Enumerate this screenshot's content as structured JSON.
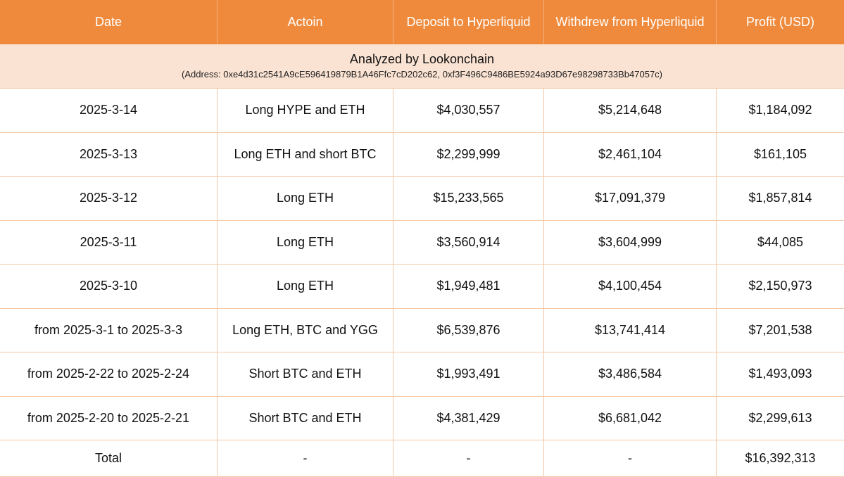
{
  "table": {
    "columns": [
      "Date",
      "Actoin",
      "Deposit to Hyperliquid",
      "Withdrew from Hyperliquid",
      "Profit (USD)"
    ],
    "banner": {
      "title": "Analyzed by Lookonchain",
      "address": "(Address: 0xe4d31c2541A9cE596419879B1A46Ffc7cD202c62, 0xf3F496C9486BE5924a93D67e98298733Bb47057c)"
    },
    "rows": [
      [
        "2025-3-14",
        "Long HYPE and ETH",
        "$4,030,557",
        "$5,214,648",
        "$1,184,092"
      ],
      [
        "2025-3-13",
        "Long ETH and short BTC",
        "$2,299,999",
        "$2,461,104",
        "$161,105"
      ],
      [
        "2025-3-12",
        "Long ETH",
        "$15,233,565",
        "$17,091,379",
        "$1,857,814"
      ],
      [
        "2025-3-11",
        "Long ETH",
        "$3,560,914",
        "$3,604,999",
        "$44,085"
      ],
      [
        "2025-3-10",
        "Long ETH",
        "$1,949,481",
        "$4,100,454",
        "$2,150,973"
      ],
      [
        "from 2025-3-1 to 2025-3-3",
        "Long ETH, BTC and YGG",
        "$6,539,876",
        "$13,741,414",
        "$7,201,538"
      ],
      [
        "from 2025-2-22 to 2025-2-24",
        "Short BTC and ETH",
        "$1,993,491",
        "$3,486,584",
        "$1,493,093"
      ],
      [
        "from 2025-2-20 to 2025-2-21",
        "Short BTC and ETH",
        "$4,381,429",
        "$6,681,042",
        "$2,299,613"
      ],
      [
        "Total",
        "-",
        "-",
        "-",
        "$16,392,313"
      ]
    ]
  },
  "colors": {
    "header_bg": "#ef8a3c",
    "banner_bg": "#fbe3d3",
    "border": "#f3c9a8"
  }
}
